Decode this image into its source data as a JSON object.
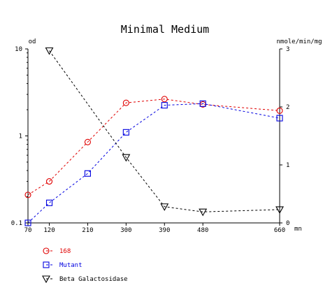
{
  "chart_data": {
    "type": "line",
    "title": "Minimal Medium",
    "xlabel": "mn",
    "ylabel_left": "od",
    "ylabel_right": "nmole/min/mg",
    "x_ticks": [
      70,
      120,
      210,
      300,
      390,
      480,
      660
    ],
    "xlim": [
      70,
      660
    ],
    "y_left": {
      "scale": "log",
      "lim": [
        0.1,
        10
      ],
      "ticks": [
        "0.1",
        "1",
        "10"
      ],
      "tick_values": [
        0.1,
        1,
        10
      ]
    },
    "y_right": {
      "scale": "linear",
      "lim": [
        0,
        3
      ],
      "ticks": [
        "0",
        "1",
        "2",
        "3"
      ],
      "tick_values": [
        0,
        1,
        2,
        3
      ]
    },
    "grid": false,
    "legend_position": "bottom-left",
    "series": [
      {
        "name": "168",
        "axis": "left",
        "marker": "circle",
        "color": "#e00000",
        "x": [
          70,
          120,
          210,
          300,
          390,
          480,
          660
        ],
        "y": [
          0.21,
          0.3,
          0.85,
          2.4,
          2.65,
          2.3,
          1.95
        ]
      },
      {
        "name": "Mutant",
        "axis": "left",
        "marker": "square",
        "color": "#0000e0",
        "x": [
          70,
          120,
          210,
          300,
          390,
          480,
          660
        ],
        "y": [
          0.1,
          0.17,
          0.37,
          1.1,
          2.25,
          2.35,
          1.6
        ]
      },
      {
        "name": "Beta Galactosidase",
        "axis": "right",
        "marker": "triangle-down",
        "color": "#000000",
        "x": [
          120,
          300,
          390,
          480,
          660
        ],
        "y": [
          2.97,
          1.13,
          0.28,
          0.19,
          0.23
        ]
      }
    ]
  }
}
